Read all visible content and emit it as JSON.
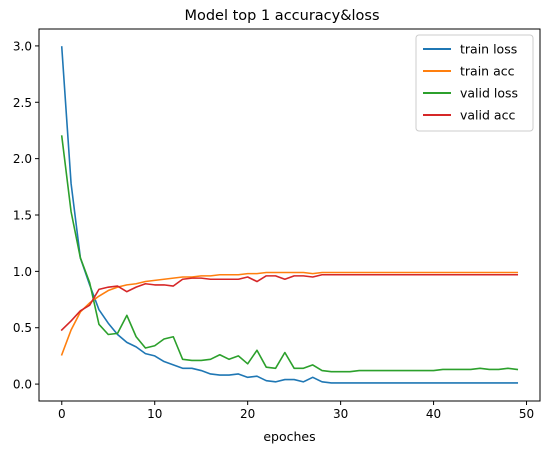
{
  "chart_data": {
    "type": "line",
    "title": "Model top 1 accuracy&loss",
    "xlabel": "epoches",
    "ylabel": "",
    "xlim": [
      -2.45,
      51.45
    ],
    "ylim": [
      -0.15,
      3.15
    ],
    "xticks": [
      0,
      10,
      20,
      30,
      40,
      50
    ],
    "yticks": [
      0.0,
      0.5,
      1.0,
      1.5,
      2.0,
      2.5,
      3.0
    ],
    "ytick_labels": [
      "0.0",
      "0.5",
      "1.0",
      "1.5",
      "2.0",
      "2.5",
      "3.0"
    ],
    "grid": false,
    "legend_position": "top-right",
    "x": [
      0,
      1,
      2,
      3,
      4,
      5,
      6,
      7,
      8,
      9,
      10,
      11,
      12,
      13,
      14,
      15,
      16,
      17,
      18,
      19,
      20,
      21,
      22,
      23,
      24,
      25,
      26,
      27,
      28,
      29,
      30,
      31,
      32,
      33,
      34,
      35,
      36,
      37,
      38,
      39,
      40,
      41,
      42,
      43,
      44,
      45,
      46,
      47,
      48,
      49
    ],
    "series": [
      {
        "name": "train loss",
        "color": "#1f77b4",
        "values": [
          2.99,
          1.78,
          1.12,
          0.88,
          0.66,
          0.54,
          0.44,
          0.37,
          0.33,
          0.27,
          0.25,
          0.2,
          0.17,
          0.14,
          0.14,
          0.12,
          0.09,
          0.08,
          0.08,
          0.09,
          0.06,
          0.07,
          0.03,
          0.02,
          0.04,
          0.04,
          0.02,
          0.06,
          0.02,
          0.01,
          0.01,
          0.01,
          0.01,
          0.01,
          0.01,
          0.01,
          0.01,
          0.01,
          0.01,
          0.01,
          0.01,
          0.01,
          0.01,
          0.01,
          0.01,
          0.01,
          0.01,
          0.01,
          0.01,
          0.01
        ]
      },
      {
        "name": "train acc",
        "color": "#ff7f0e",
        "values": [
          0.26,
          0.48,
          0.64,
          0.72,
          0.78,
          0.83,
          0.86,
          0.88,
          0.89,
          0.91,
          0.92,
          0.93,
          0.94,
          0.95,
          0.95,
          0.96,
          0.96,
          0.97,
          0.97,
          0.97,
          0.98,
          0.98,
          0.99,
          0.99,
          0.99,
          0.99,
          0.99,
          0.98,
          0.99,
          0.99,
          0.99,
          0.99,
          0.99,
          0.99,
          0.99,
          0.99,
          0.99,
          0.99,
          0.99,
          0.99,
          0.99,
          0.99,
          0.99,
          0.99,
          0.99,
          0.99,
          0.99,
          0.99,
          0.99,
          0.99
        ]
      },
      {
        "name": "valid loss",
        "color": "#2ca02c",
        "values": [
          2.2,
          1.53,
          1.12,
          0.9,
          0.53,
          0.44,
          0.45,
          0.61,
          0.42,
          0.32,
          0.34,
          0.4,
          0.42,
          0.22,
          0.21,
          0.21,
          0.22,
          0.26,
          0.22,
          0.25,
          0.18,
          0.3,
          0.15,
          0.14,
          0.28,
          0.14,
          0.14,
          0.17,
          0.12,
          0.11,
          0.11,
          0.11,
          0.12,
          0.12,
          0.12,
          0.12,
          0.12,
          0.12,
          0.12,
          0.12,
          0.12,
          0.13,
          0.13,
          0.13,
          0.13,
          0.14,
          0.13,
          0.13,
          0.14,
          0.13
        ]
      },
      {
        "name": "valid acc",
        "color": "#d62728",
        "values": [
          0.48,
          0.56,
          0.65,
          0.7,
          0.84,
          0.86,
          0.87,
          0.82,
          0.86,
          0.89,
          0.88,
          0.88,
          0.87,
          0.93,
          0.94,
          0.94,
          0.93,
          0.93,
          0.93,
          0.93,
          0.95,
          0.91,
          0.96,
          0.96,
          0.93,
          0.96,
          0.96,
          0.95,
          0.97,
          0.97,
          0.97,
          0.97,
          0.97,
          0.97,
          0.97,
          0.97,
          0.97,
          0.97,
          0.97,
          0.97,
          0.97,
          0.97,
          0.97,
          0.97,
          0.97,
          0.97,
          0.97,
          0.97,
          0.97,
          0.97
        ]
      }
    ]
  }
}
